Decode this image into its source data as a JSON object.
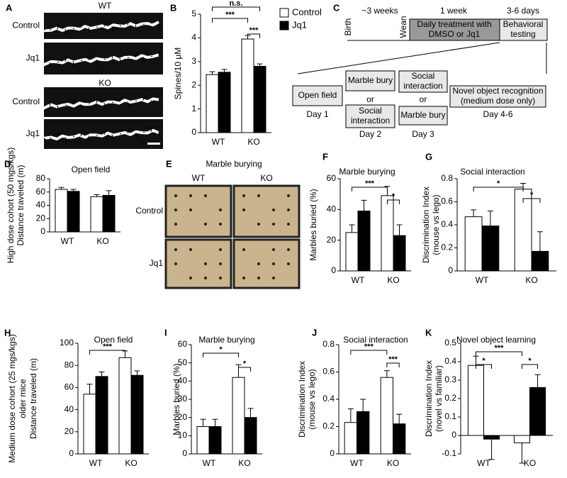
{
  "panel_a": {
    "label": "A",
    "groups": [
      {
        "genotype": "WT",
        "rows": [
          "Control",
          "Jq1"
        ]
      },
      {
        "genotype": "KO",
        "rows": [
          "Control",
          "Jq1"
        ]
      }
    ]
  },
  "panel_c": {
    "label": "C",
    "timeline": {
      "birth": "Birth",
      "wean_interval": "~3 weeks",
      "wean": "Wean",
      "treatment_interval": "1 week",
      "treatment": [
        "Daily treatment with",
        "DMSO or Jq1"
      ],
      "testing_interval": "3-6 days",
      "testing": [
        "Behavioral",
        "testing"
      ]
    },
    "schedule": [
      {
        "tests": [
          [
            "Open field"
          ]
        ],
        "day": "Day 1"
      },
      {
        "tests": [
          [
            "Marble bury"
          ],
          [
            "or"
          ],
          [
            "Social",
            "interaction"
          ]
        ],
        "day": "Day 2"
      },
      {
        "tests": [
          [
            "Social",
            "interaction"
          ],
          [
            "or"
          ],
          [
            "Marble bury"
          ]
        ],
        "day": "Day 3"
      },
      {
        "tests": [
          [
            "Novel object recognition",
            "(medium dose only)"
          ]
        ],
        "day": "Day 4-6"
      }
    ]
  },
  "panel_e": {
    "label": "E",
    "title": "Marble burying",
    "columns": [
      "WT",
      "KO"
    ],
    "rows": [
      "Control",
      "Jq1"
    ]
  },
  "chart_data": [
    {
      "type": "bar",
      "label": "B",
      "y_label": [
        "Spines/10 μM"
      ],
      "categories": [
        "WT",
        "KO"
      ],
      "series": [
        {
          "name": "Control",
          "color": "#ffffff",
          "values": [
            2.45,
            3.95
          ],
          "errors": [
            0.12,
            0.15
          ]
        },
        {
          "name": "Jq1",
          "color": "#000000",
          "values": [
            2.55,
            2.8
          ],
          "errors": [
            0.12,
            0.1
          ]
        }
      ],
      "ylim": [
        0,
        5
      ],
      "yticks": [
        0,
        1,
        2,
        3,
        4,
        5
      ],
      "annotations": [
        "n.s.",
        "***",
        "***"
      ]
    },
    {
      "type": "bar",
      "label": "D",
      "title": "Open field",
      "y_label": [
        "High dose cohort (50 mgs/kgs)",
        "Distance traveled (m)"
      ],
      "categories": [
        "WT",
        "KO"
      ],
      "series": [
        {
          "color": "#ffffff",
          "values": [
            64,
            53
          ],
          "errors": [
            3,
            3
          ]
        },
        {
          "color": "#000000",
          "values": [
            61,
            55
          ],
          "errors": [
            3,
            7
          ]
        }
      ],
      "ylim": [
        0,
        80
      ],
      "yticks": [
        0,
        20,
        40,
        60,
        80
      ],
      "annotations": []
    },
    {
      "type": "bar",
      "label": "F",
      "title": "Marble burying",
      "y_label": [
        "Marbles buried (%)"
      ],
      "categories": [
        "WT",
        "KO"
      ],
      "series": [
        {
          "color": "#ffffff",
          "values": [
            25,
            49
          ],
          "errors": [
            5,
            6
          ]
        },
        {
          "color": "#000000",
          "values": [
            39,
            23
          ],
          "errors": [
            7,
            7
          ]
        }
      ],
      "ylim": [
        0,
        60
      ],
      "yticks": [
        0,
        20,
        40,
        60
      ],
      "annotations": [
        "***",
        "*"
      ]
    },
    {
      "type": "bar",
      "label": "G",
      "title": "Social interaction",
      "y_label": [
        "Discrimination Index",
        "(mouse vs lego)"
      ],
      "categories": [
        "WT",
        "KO"
      ],
      "series": [
        {
          "color": "#ffffff",
          "values": [
            0.47,
            0.71
          ],
          "errors": [
            0.06,
            0.05
          ]
        },
        {
          "color": "#000000",
          "values": [
            0.39,
            0.17
          ],
          "errors": [
            0.13,
            0.17
          ]
        }
      ],
      "ylim": [
        0,
        0.8
      ],
      "yticks": [
        0,
        0.2,
        0.4,
        0.6,
        0.8
      ],
      "annotations": [
        "*",
        "*"
      ]
    },
    {
      "type": "bar",
      "label": "H",
      "title": "Open field",
      "y_label": [
        "Medium dose cohort (25 mgs/kgs)",
        "older mice",
        "Distance traveled (m)"
      ],
      "categories": [
        "WT",
        "KO"
      ],
      "series": [
        {
          "color": "#ffffff",
          "values": [
            54,
            87
          ],
          "errors": [
            9,
            6
          ]
        },
        {
          "color": "#000000",
          "values": [
            70,
            71
          ],
          "errors": [
            4,
            4
          ]
        }
      ],
      "ylim": [
        0,
        100
      ],
      "yticks": [
        0,
        20,
        40,
        60,
        80,
        100
      ],
      "annotations": [
        "***"
      ]
    },
    {
      "type": "bar",
      "label": "I",
      "title": "Marble burying",
      "y_label": [
        "Marbles buried  (%)"
      ],
      "categories": [
        "WT",
        "KO"
      ],
      "series": [
        {
          "color": "#ffffff",
          "values": [
            15,
            42
          ],
          "errors": [
            4,
            7
          ]
        },
        {
          "color": "#000000",
          "values": [
            15,
            20
          ],
          "errors": [
            4,
            5
          ]
        }
      ],
      "ylim": [
        0,
        60
      ],
      "yticks": [
        0,
        10,
        20,
        30,
        40,
        50,
        60
      ],
      "annotations": [
        "*",
        "*"
      ]
    },
    {
      "type": "bar",
      "label": "J",
      "title": "Social interaction",
      "y_label": [
        "Discrimination Index",
        "(mouse vs lego)"
      ],
      "categories": [
        "WT",
        "KO"
      ],
      "series": [
        {
          "color": "#ffffff",
          "values": [
            0.23,
            0.56
          ],
          "errors": [
            0.1,
            0.05
          ]
        },
        {
          "color": "#000000",
          "values": [
            0.31,
            0.22
          ],
          "errors": [
            0.09,
            0.07
          ]
        }
      ],
      "ylim": [
        0,
        0.8
      ],
      "yticks": [
        0,
        0.2,
        0.4,
        0.6,
        0.8
      ],
      "annotations": [
        "***",
        "***"
      ]
    },
    {
      "type": "bar",
      "label": "K",
      "title": "Novel object learning",
      "y_label": [
        "Discrimination Index",
        "(novel vs familiar)"
      ],
      "categories": [
        "WT",
        "KO"
      ],
      "series": [
        {
          "color": "#ffffff",
          "values": [
            0.38,
            -0.04
          ],
          "errors": [
            0.05,
            0.11
          ]
        },
        {
          "color": "#000000",
          "values": [
            -0.02,
            0.26
          ],
          "errors": [
            0.11,
            0.07
          ]
        }
      ],
      "ylim": [
        -0.1,
        0.5
      ],
      "yticks": [
        -0.1,
        0,
        0.1,
        0.2,
        0.3,
        0.4,
        0.5
      ],
      "annotations": [
        "***",
        "*",
        "*"
      ]
    }
  ]
}
